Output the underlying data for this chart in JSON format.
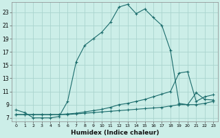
{
  "xlabel": "Humidex (Indice chaleur)",
  "bg_color": "#cceee8",
  "line_color": "#1a6b6b",
  "grid_color": "#aad4ce",
  "xlim": [
    -0.5,
    23.5
  ],
  "ylim": [
    6.5,
    24.5
  ],
  "xticks": [
    0,
    1,
    2,
    3,
    4,
    5,
    6,
    7,
    8,
    9,
    10,
    11,
    12,
    13,
    14,
    15,
    16,
    17,
    18,
    19,
    20,
    21,
    22,
    23
  ],
  "yticks": [
    7,
    9,
    11,
    13,
    15,
    17,
    19,
    21,
    23
  ],
  "line1_x": [
    0,
    1,
    2,
    3,
    4,
    5,
    6,
    7,
    8,
    9,
    10,
    11,
    12,
    13,
    14,
    15,
    16,
    17,
    18,
    19,
    20,
    21,
    22,
    23
  ],
  "line1_y": [
    8.2,
    7.8,
    7.0,
    7.0,
    7.0,
    7.2,
    9.5,
    15.5,
    18.0,
    19.0,
    20.0,
    21.5,
    23.8,
    24.2,
    22.8,
    23.5,
    22.2,
    21.0,
    17.2,
    9.2,
    9.0,
    10.8,
    9.8,
    9.7
  ],
  "line2_x": [
    0,
    1,
    2,
    3,
    4,
    5,
    6,
    7,
    8,
    9,
    10,
    11,
    12,
    13,
    14,
    15,
    16,
    17,
    18,
    19,
    20,
    21,
    22,
    23
  ],
  "line2_y": [
    7.5,
    7.5,
    7.5,
    7.5,
    7.5,
    7.5,
    7.6,
    7.7,
    7.9,
    8.1,
    8.3,
    8.6,
    9.0,
    9.2,
    9.5,
    9.8,
    10.2,
    10.6,
    11.0,
    13.8,
    14.0,
    9.5,
    10.2,
    10.5
  ],
  "line3_x": [
    0,
    1,
    2,
    3,
    4,
    5,
    6,
    7,
    8,
    9,
    10,
    11,
    12,
    13,
    14,
    15,
    16,
    17,
    18,
    19,
    20,
    21,
    22,
    23
  ],
  "line3_y": [
    7.5,
    7.5,
    7.5,
    7.5,
    7.5,
    7.5,
    7.5,
    7.6,
    7.7,
    7.8,
    7.9,
    8.0,
    8.1,
    8.2,
    8.3,
    8.4,
    8.5,
    8.6,
    8.8,
    9.0,
    9.0,
    9.0,
    9.2,
    9.5
  ]
}
